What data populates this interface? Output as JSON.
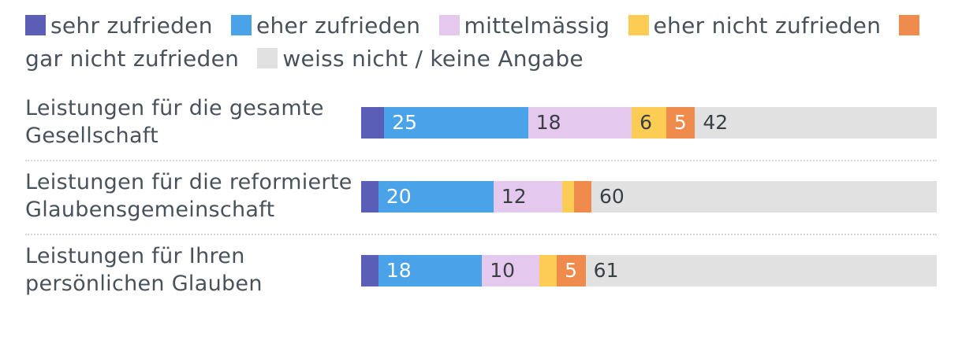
{
  "colors": {
    "sehr": "#5b5eb6",
    "eher": "#4aa3e8",
    "mittel": "#e5c8ee",
    "eher_nicht": "#fdcc55",
    "gar_nicht": "#ef8b4c",
    "weiss_nicht": "#e1e1e1"
  },
  "legend": {
    "sehr": "sehr zufrieden",
    "eher": "eher zufrieden",
    "mittel": "mittelmässig",
    "eher_nicht": "eher nicht zufrieden",
    "gar_nicht": "gar nicht zufrieden",
    "weiss_nicht": "weiss nicht / keine Angabe"
  },
  "chart_data": {
    "type": "bar",
    "orientation": "horizontal-stacked-100",
    "categories": [
      "Leistungen für die gesamte Gesellschaft",
      "Leistungen für die reformierte Glaubensgemeinschaft",
      "Leistungen für Ihren persönlichen Glauben"
    ],
    "category_lines": [
      [
        "Leistungen für die gesamte",
        "Gesellschaft"
      ],
      [
        "Leistungen für die reformierte",
        "Glaubensgemeinschaft"
      ],
      [
        "Leistungen für Ihren",
        "persönlichen Glauben"
      ]
    ],
    "series": [
      {
        "key": "sehr",
        "name": "sehr zufrieden",
        "values": [
          4,
          3,
          3
        ],
        "labels": [
          "",
          "",
          ""
        ]
      },
      {
        "key": "eher",
        "name": "eher zufrieden",
        "values": [
          25,
          20,
          18
        ],
        "labels": [
          "25",
          "20",
          "18"
        ]
      },
      {
        "key": "mittel",
        "name": "mittelmässig",
        "values": [
          18,
          12,
          10
        ],
        "labels": [
          "18",
          "12",
          "10"
        ]
      },
      {
        "key": "eher_nicht",
        "name": "eher nicht zufrieden",
        "values": [
          6,
          2,
          3
        ],
        "labels": [
          "6",
          "",
          ""
        ]
      },
      {
        "key": "gar_nicht",
        "name": "gar nicht zufrieden",
        "values": [
          5,
          3,
          5
        ],
        "labels": [
          "5",
          "",
          "5"
        ]
      },
      {
        "key": "weiss_nicht",
        "name": "weiss nicht / keine Angabe",
        "values": [
          42,
          60,
          61
        ],
        "labels": [
          "42",
          "60",
          "61"
        ]
      }
    ],
    "xlim": [
      0,
      100
    ],
    "title": "",
    "xlabel": "",
    "ylabel": ""
  }
}
